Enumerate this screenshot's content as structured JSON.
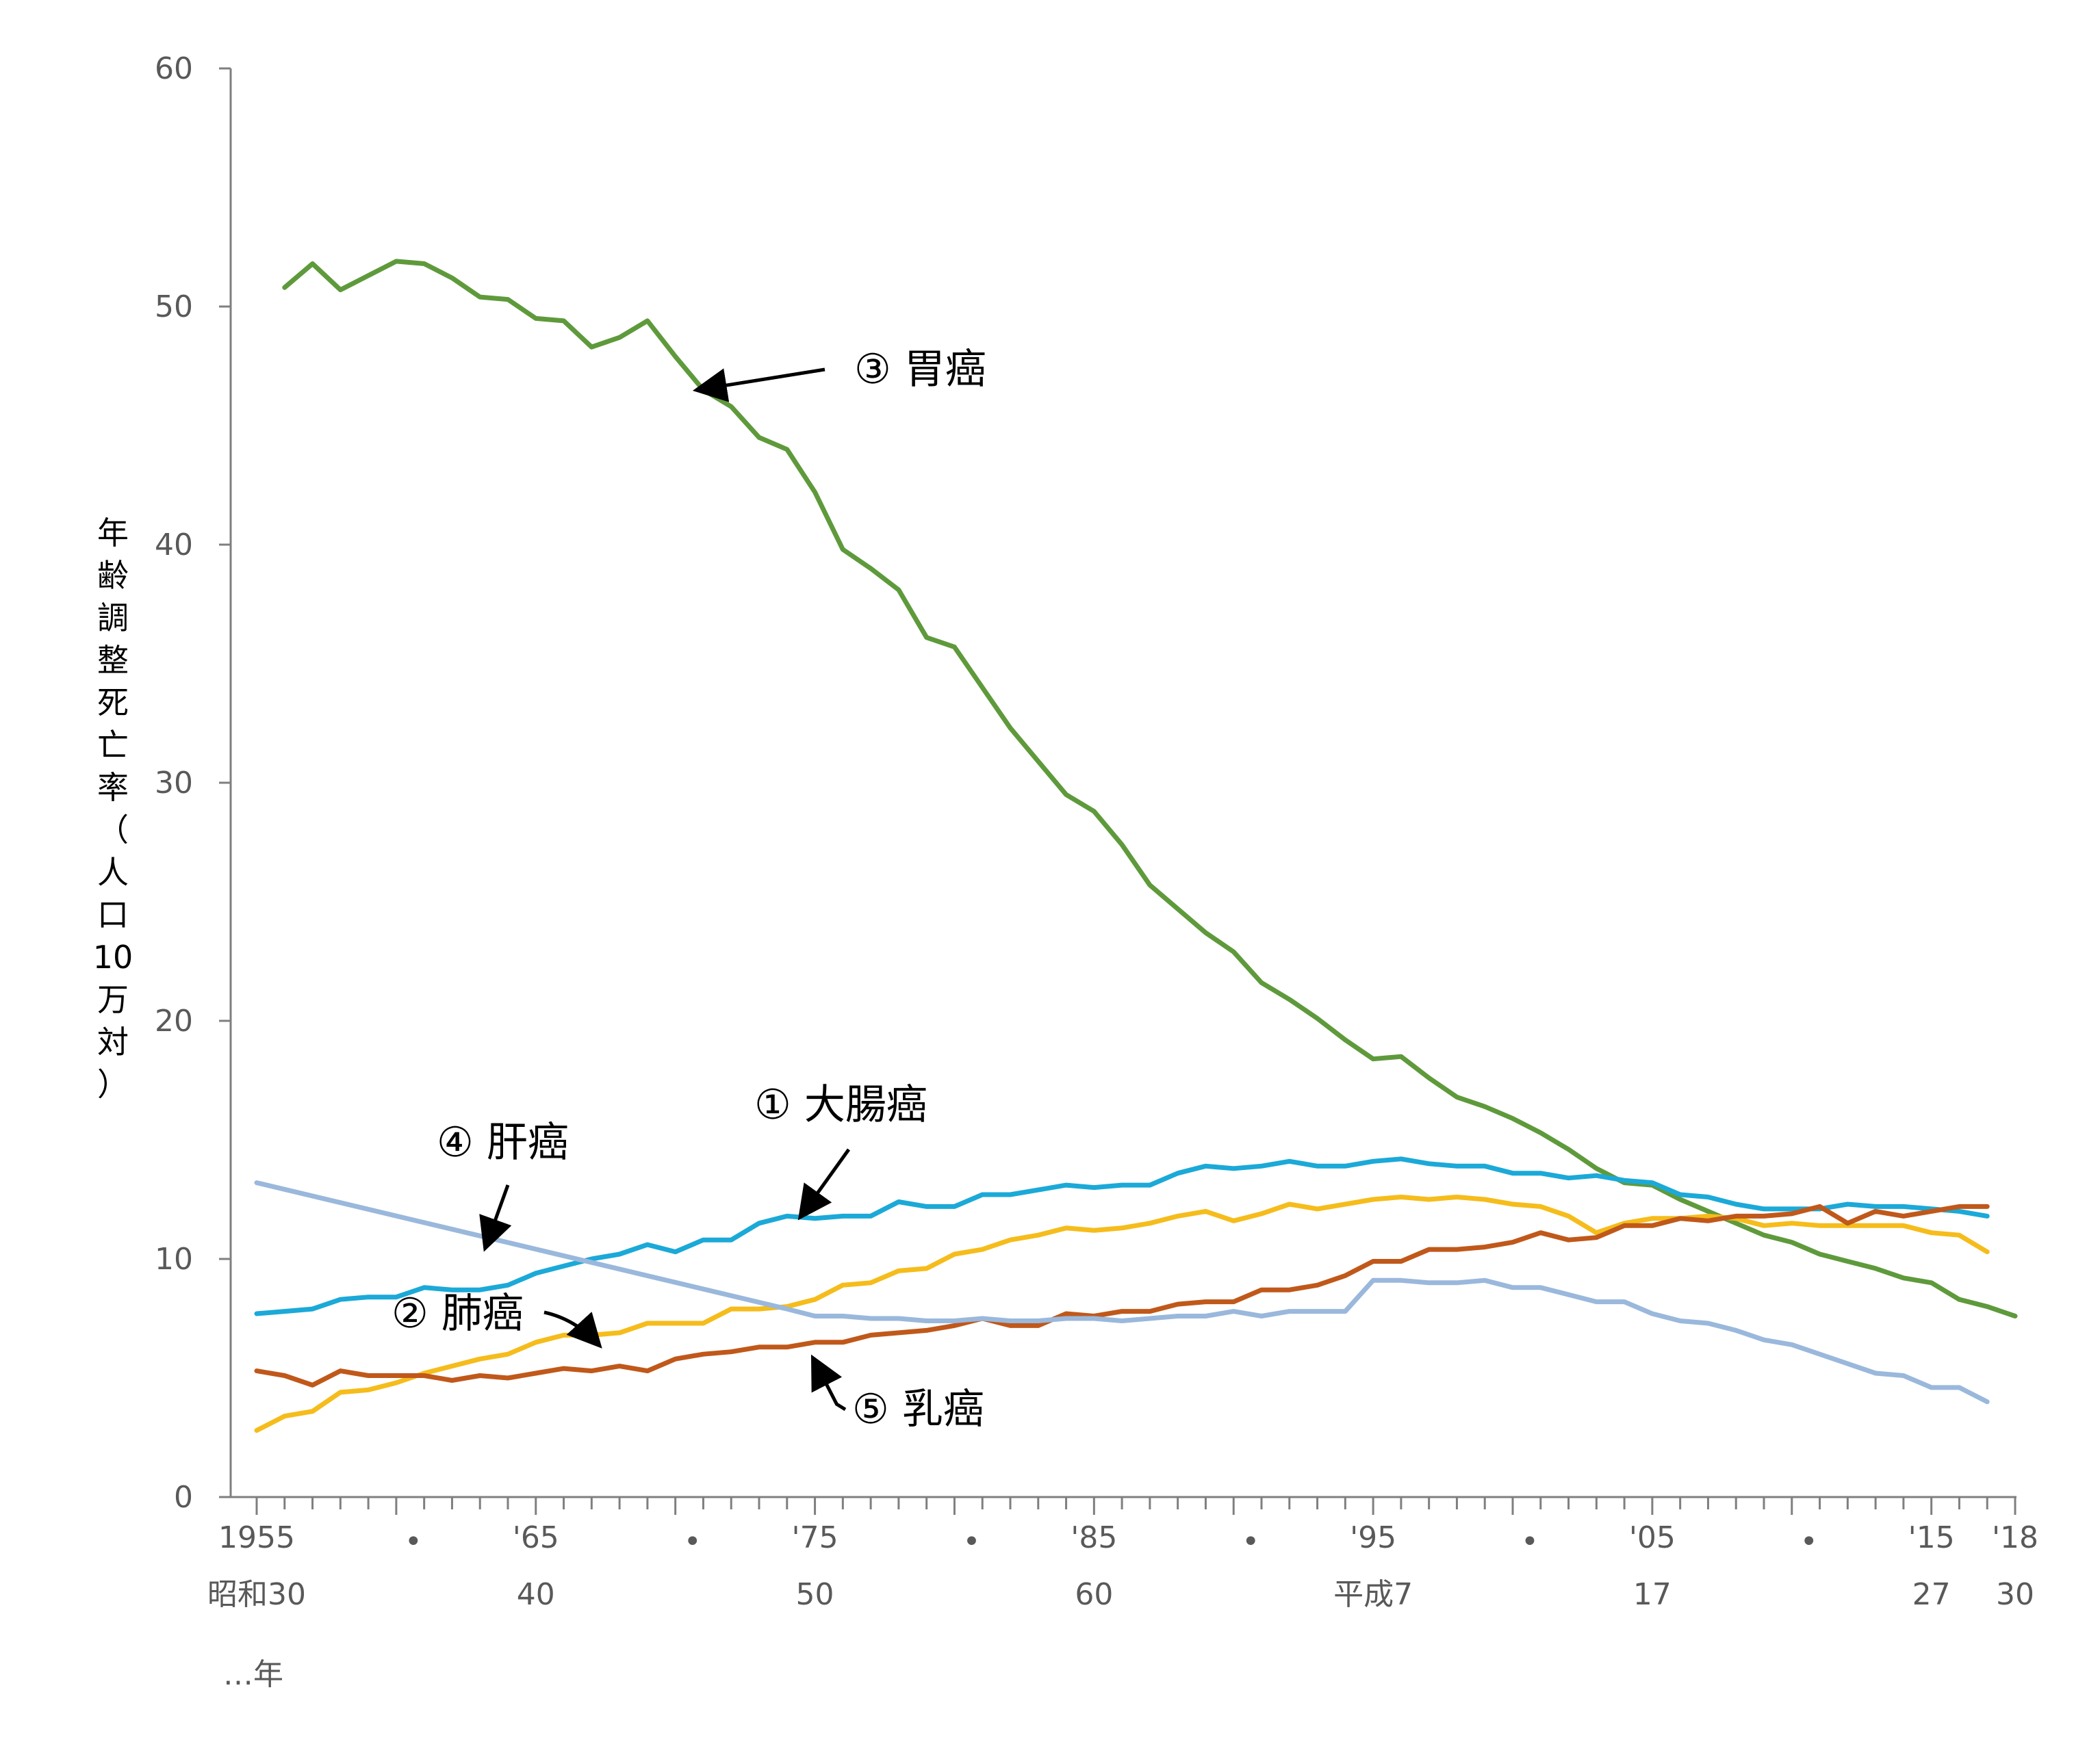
{
  "chart_data": {
    "type": "line",
    "ylabel": [
      "年",
      "齢",
      "調",
      "整",
      "死",
      "亡",
      "率",
      "（",
      "人",
      "口",
      "10",
      "万",
      "対",
      "）"
    ],
    "ylim": [
      0,
      60
    ],
    "xlim": [
      1955,
      2018
    ],
    "y_ticks": [
      "0",
      "10",
      "20",
      "30",
      "40",
      "50",
      "60"
    ],
    "x_tick_labels": [
      {
        "year": 1955,
        "top": "1955",
        "bottom": "昭和30"
      },
      {
        "year": 1960,
        "top": "•",
        "bottom": ""
      },
      {
        "year": 1965,
        "top": "'65",
        "bottom": "40"
      },
      {
        "year": 1970,
        "top": "•",
        "bottom": ""
      },
      {
        "year": 1975,
        "top": "'75",
        "bottom": "50"
      },
      {
        "year": 1980,
        "top": "•",
        "bottom": ""
      },
      {
        "year": 1985,
        "top": "'85",
        "bottom": "60"
      },
      {
        "year": 1990,
        "top": "•",
        "bottom": ""
      },
      {
        "year": 1995,
        "top": "'95",
        "bottom": "平成7"
      },
      {
        "year": 2000,
        "top": "•",
        "bottom": ""
      },
      {
        "year": 2005,
        "top": "'05",
        "bottom": "17"
      },
      {
        "year": 2010,
        "top": "•",
        "bottom": ""
      },
      {
        "year": 2015,
        "top": "'15",
        "bottom": "27"
      },
      {
        "year": 2018,
        "top": "'18",
        "bottom": "30"
      }
    ],
    "year_unit_label": "…年",
    "colors": {
      "colorectal": "#1ba9d8",
      "lung": "#f5bc1b",
      "stomach": "#5e9a3b",
      "liver": "#9ab8dc",
      "breast": "#c0581a",
      "axis": "#7f7f7f",
      "arrow": "#000000"
    },
    "series": [
      {
        "key": "stomach",
        "name": "③ 胃癌",
        "x_start": 1956,
        "values": [
          50.8,
          51.8,
          50.7,
          51.3,
          51.9,
          51.8,
          51.2,
          50.4,
          50.3,
          49.5,
          49.4,
          48.3,
          48.7,
          49.4,
          47.9,
          46.5,
          45.8,
          44.5,
          44.0,
          42.2,
          39.8,
          39.0,
          38.1,
          36.1,
          35.7,
          34.0,
          32.3,
          30.9,
          29.5,
          28.8,
          27.4,
          25.7,
          24.7,
          23.7,
          22.9,
          21.6,
          20.9,
          20.1,
          19.2,
          18.4,
          18.5,
          17.6,
          16.8,
          16.4,
          15.9,
          15.3,
          14.6,
          13.8,
          13.2,
          13.1,
          12.5,
          12.0,
          11.5,
          11.0,
          10.7,
          10.2,
          9.9,
          9.6,
          9.2,
          9.0,
          8.3,
          8.0,
          7.6
        ]
      },
      {
        "key": "colorectal",
        "name": "① 大腸癌",
        "x_start": 1955,
        "values": [
          7.7,
          7.8,
          7.9,
          8.3,
          8.4,
          8.4,
          8.8,
          8.7,
          8.7,
          8.9,
          9.4,
          9.7,
          10.0,
          10.2,
          10.6,
          10.3,
          10.8,
          10.8,
          11.5,
          11.8,
          11.7,
          11.8,
          11.8,
          12.4,
          12.2,
          12.2,
          12.7,
          12.7,
          12.9,
          13.1,
          13.0,
          13.1,
          13.1,
          13.6,
          13.9,
          13.8,
          13.9,
          14.1,
          13.9,
          13.9,
          14.1,
          14.2,
          14.0,
          13.9,
          13.9,
          13.6,
          13.6,
          13.4,
          13.5,
          13.3,
          13.2,
          12.7,
          12.6,
          12.3,
          12.1,
          12.1,
          12.1,
          12.3,
          12.2,
          12.2,
          12.1,
          12.0,
          11.8
        ]
      },
      {
        "key": "lung",
        "name": "② 肺癌",
        "x_start": 1955,
        "values": [
          2.8,
          3.4,
          3.6,
          4.4,
          4.5,
          4.8,
          5.2,
          5.5,
          5.8,
          6.0,
          6.5,
          6.8,
          6.8,
          6.9,
          7.3,
          7.3,
          7.3,
          7.9,
          7.9,
          8.0,
          8.3,
          8.9,
          9.0,
          9.5,
          9.6,
          10.2,
          10.4,
          10.8,
          11.0,
          11.3,
          11.2,
          11.3,
          11.5,
          11.8,
          12.0,
          11.6,
          11.9,
          12.3,
          12.1,
          12.3,
          12.5,
          12.6,
          12.5,
          12.6,
          12.5,
          12.3,
          12.2,
          11.8,
          11.1,
          11.5,
          11.7,
          11.7,
          11.8,
          11.7,
          11.4,
          11.5,
          11.4,
          11.4,
          11.4,
          11.4,
          11.1,
          11.0,
          10.3
        ]
      },
      {
        "key": "breast",
        "name": "⑤ 乳癌",
        "x_start": 1955,
        "values": [
          5.3,
          5.1,
          4.7,
          5.3,
          5.1,
          5.1,
          5.1,
          4.9,
          5.1,
          5.0,
          5.2,
          5.4,
          5.3,
          5.5,
          5.3,
          5.8,
          6.0,
          6.1,
          6.3,
          6.3,
          6.5,
          6.5,
          6.8,
          6.9,
          7.0,
          7.2,
          7.5,
          7.2,
          7.2,
          7.7,
          7.6,
          7.8,
          7.8,
          8.1,
          8.2,
          8.2,
          8.7,
          8.7,
          8.9,
          9.3,
          9.9,
          9.9,
          10.4,
          10.4,
          10.5,
          10.7,
          11.1,
          10.8,
          10.9,
          11.4,
          11.4,
          11.7,
          11.6,
          11.8,
          11.8,
          11.9,
          12.2,
          11.5,
          12.0,
          11.8,
          12.0,
          12.2,
          12.2
        ]
      },
      {
        "key": "liver",
        "name": "④ 肝癌",
        "x_start": 1955,
        "values": [
          13.2,
          null,
          null,
          null,
          null,
          null,
          null,
          null,
          null,
          null,
          null,
          null,
          null,
          null,
          null,
          null,
          null,
          null,
          null,
          7.9,
          7.6,
          7.6,
          7.5,
          7.5,
          7.4,
          7.4,
          7.5,
          7.4,
          7.4,
          7.5,
          7.5,
          7.4,
          7.5,
          7.6,
          7.6,
          7.8,
          7.6,
          7.8,
          7.8,
          7.8,
          9.1,
          9.1,
          9.0,
          9.0,
          9.1,
          8.8,
          8.8,
          8.5,
          8.2,
          8.2,
          7.7,
          7.4,
          7.3,
          7.0,
          6.6,
          6.4,
          6.0,
          5.6,
          5.2,
          5.1,
          4.6,
          4.6,
          4.0
        ]
      }
    ],
    "annotations": [
      {
        "key": "stomach",
        "label": "③ 胃癌",
        "year": 1970.8,
        "value": 46.5
      },
      {
        "key": "colorectal",
        "label": "① 大腸癌",
        "year": 1974.5,
        "value": 11.8
      },
      {
        "key": "liver",
        "label": "④ 肝癌",
        "year": 1963.2,
        "value": 10.5
      },
      {
        "key": "lung",
        "label": "② 肺癌",
        "year": 1967.4,
        "value": 6.8
      },
      {
        "key": "breast",
        "label": "⑤ 乳癌",
        "year": 1974.8,
        "value": 6.2
      }
    ]
  }
}
